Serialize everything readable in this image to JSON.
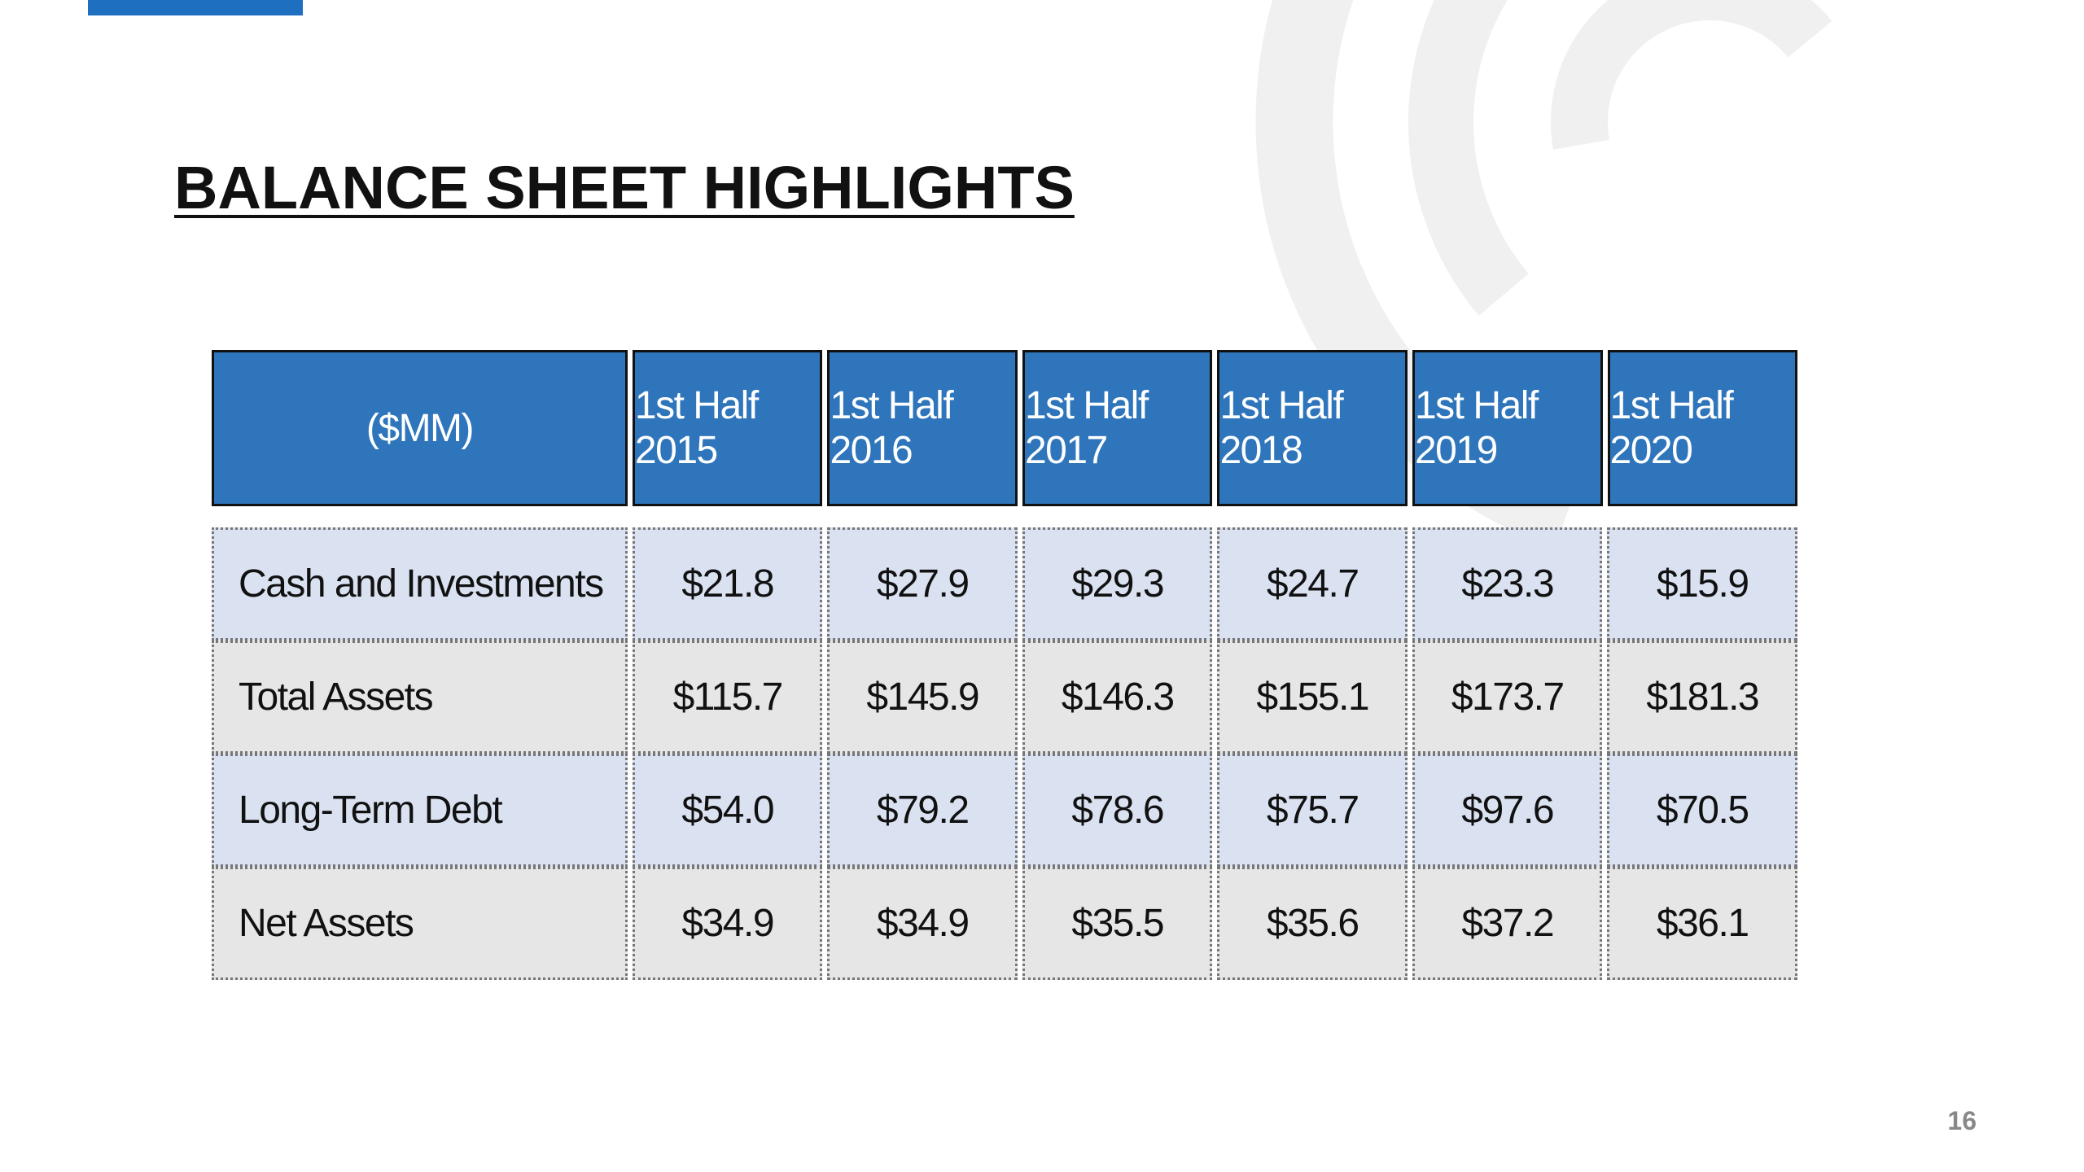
{
  "slide": {
    "title": "BALANCE SHEET HIGHLIGHTS",
    "page_number": "16",
    "accent_color": "#1f6fc0",
    "header_color": "#2e75bb",
    "row_colors": [
      "#dae2f2",
      "#e6e6e6"
    ]
  },
  "table": {
    "header": [
      "($MM)",
      "1st Half 2015",
      "1st Half 2016",
      "1st Half 2017",
      "1st Half 2018",
      "1st Half 2019",
      "1st Half 2020"
    ],
    "rows": [
      {
        "label": "Cash and Investments",
        "values": [
          "$21.8",
          "$27.9",
          "$29.3",
          "$24.7",
          "$23.3",
          "$15.9"
        ]
      },
      {
        "label": "Total Assets",
        "values": [
          "$115.7",
          "$145.9",
          "$146.3",
          "$155.1",
          "$173.7",
          "$181.3"
        ]
      },
      {
        "label": "Long-Term Debt",
        "values": [
          "$54.0",
          "$79.2",
          "$78.6",
          "$75.7",
          "$97.6",
          "$70.5"
        ]
      },
      {
        "label": "Net Assets",
        "values": [
          "$34.9",
          "$34.9",
          "$35.5",
          "$35.6",
          "$37.2",
          "$36.1"
        ]
      }
    ]
  }
}
